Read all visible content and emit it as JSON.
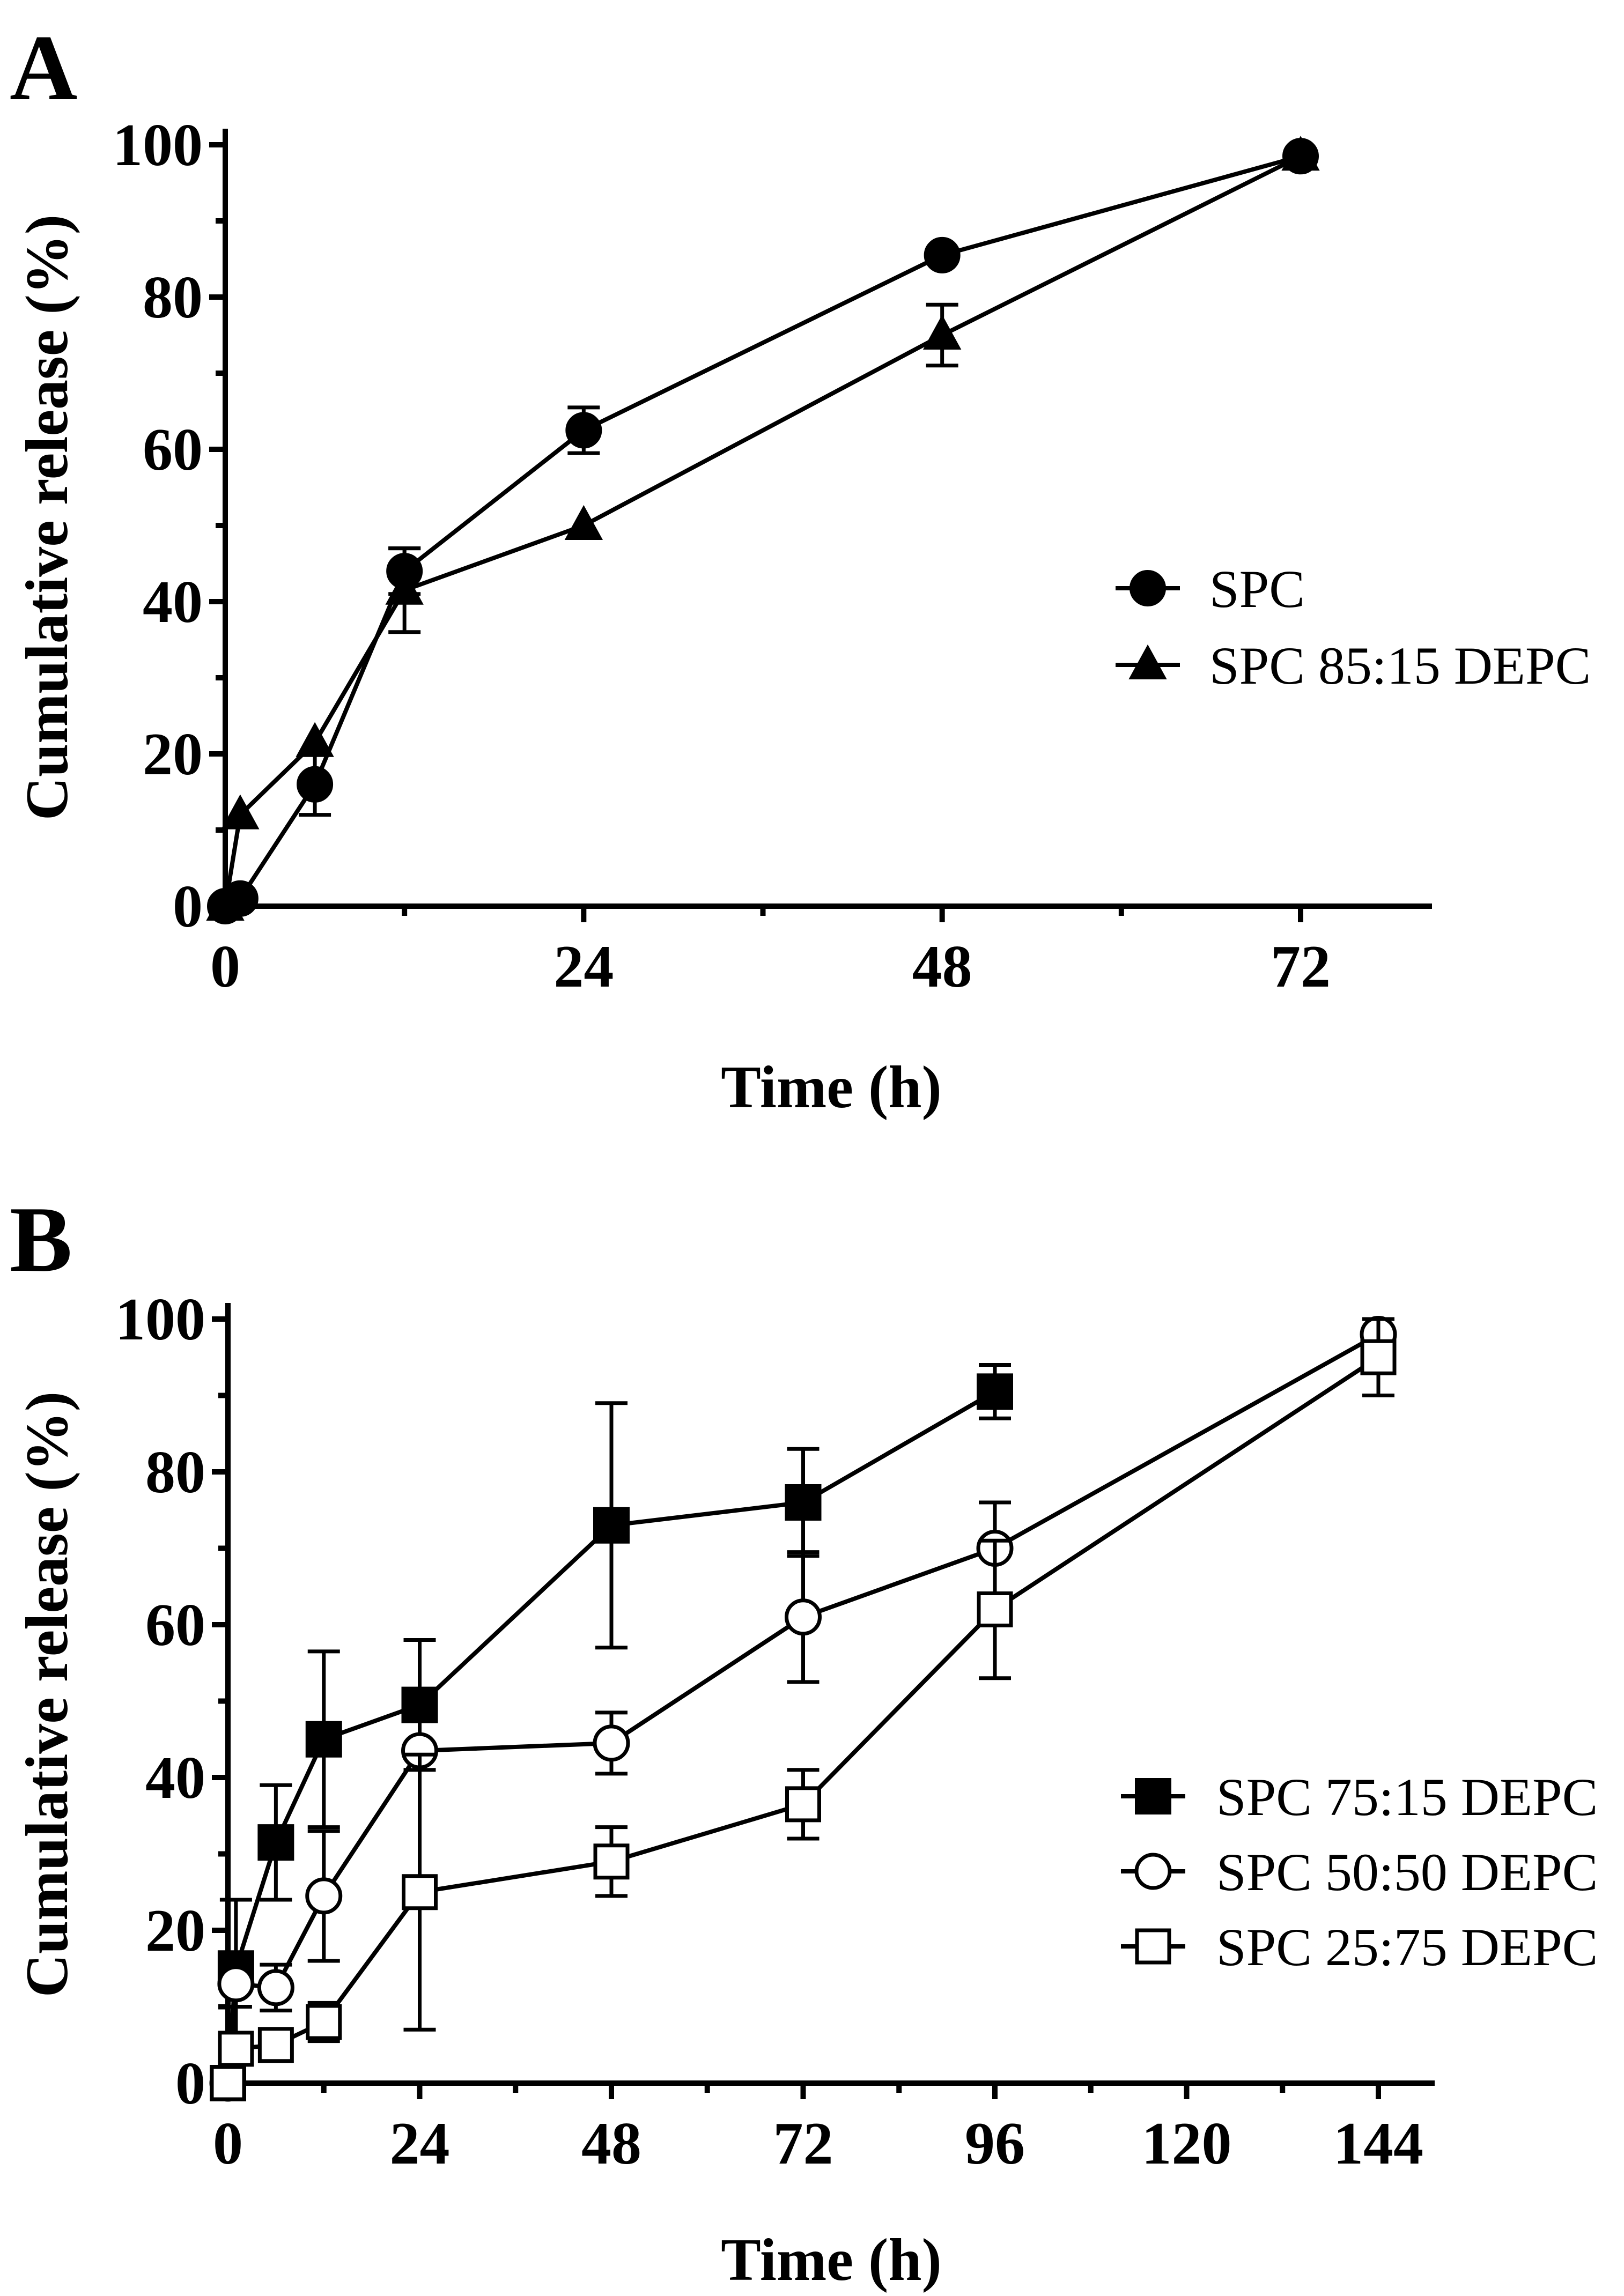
{
  "chart_data": [
    {
      "type": "line",
      "panel_label": "A",
      "xlabel": "Time (h)",
      "ylabel": "Cumulative release (%)",
      "xlim": [
        0,
        84
      ],
      "ylim": [
        0,
        100
      ],
      "xticks": [
        0,
        24,
        48,
        72
      ],
      "xtick_labels": [
        "0",
        "24",
        "48",
        "72"
      ],
      "yticks": [
        0,
        20,
        40,
        60,
        80,
        100
      ],
      "ytick_labels": [
        "0",
        "20",
        "40",
        "60",
        "80",
        "100"
      ],
      "legend_position": "right-middle",
      "series": [
        {
          "name": "SPC",
          "marker": "circle-filled",
          "x": [
            0,
            1,
            6,
            12,
            24,
            48,
            72
          ],
          "y": [
            0,
            1,
            16,
            44,
            62.5,
            85.5,
            98.5
          ],
          "err": [
            0,
            0,
            4,
            3,
            3,
            0,
            0
          ]
        },
        {
          "name": "SPC 85:15 DEPC",
          "marker": "triangle-filled",
          "x": [
            0,
            1,
            6,
            12,
            24,
            48,
            72
          ],
          "y": [
            0,
            12,
            21.5,
            41.5,
            50,
            75,
            98.5
          ],
          "err": [
            0,
            0,
            0,
            5.5,
            0,
            4,
            0
          ]
        }
      ]
    },
    {
      "type": "line",
      "panel_label": "B",
      "xlabel": "Time (h)",
      "ylabel": "Cumulative release (%)",
      "xlim": [
        0,
        150
      ],
      "ylim": [
        0,
        100
      ],
      "xticks": [
        0,
        24,
        48,
        72,
        96,
        120,
        144
      ],
      "xtick_labels": [
        "0",
        "24",
        "48",
        "72",
        "96",
        "120",
        "144"
      ],
      "yticks": [
        0,
        20,
        40,
        60,
        80,
        100
      ],
      "ytick_labels": [
        "0",
        "20",
        "40",
        "60",
        "80",
        "100"
      ],
      "legend_position": "bottom-right",
      "series": [
        {
          "name": "SPC 75:15 DEPC",
          "marker": "square-filled",
          "x": [
            0,
            1,
            6,
            12,
            24,
            48,
            72,
            96
          ],
          "y": [
            0,
            15,
            31.5,
            45,
            49.5,
            73,
            76,
            90.5
          ],
          "err": [
            0,
            9,
            7.5,
            11.5,
            8.5,
            16,
            7,
            3.5
          ]
        },
        {
          "name": "SPC 50:50 DEPC",
          "marker": "circle-open",
          "x": [
            0,
            1,
            6,
            12,
            24,
            48,
            72,
            96,
            144
          ],
          "y": [
            0,
            13,
            12.5,
            24.5,
            43.5,
            44.5,
            61,
            70,
            98
          ],
          "err": [
            0,
            3,
            3,
            8.5,
            0,
            4,
            8.5,
            6,
            0
          ]
        },
        {
          "name": "SPC 25:75 DEPC",
          "marker": "square-open",
          "x": [
            0,
            1,
            6,
            12,
            24,
            48,
            72,
            96,
            144
          ],
          "y": [
            0,
            4.5,
            5,
            8,
            25,
            29,
            36.5,
            62,
            95
          ],
          "err": [
            0,
            2,
            1.5,
            2.5,
            18,
            4.5,
            4.5,
            9,
            5
          ]
        }
      ]
    }
  ]
}
